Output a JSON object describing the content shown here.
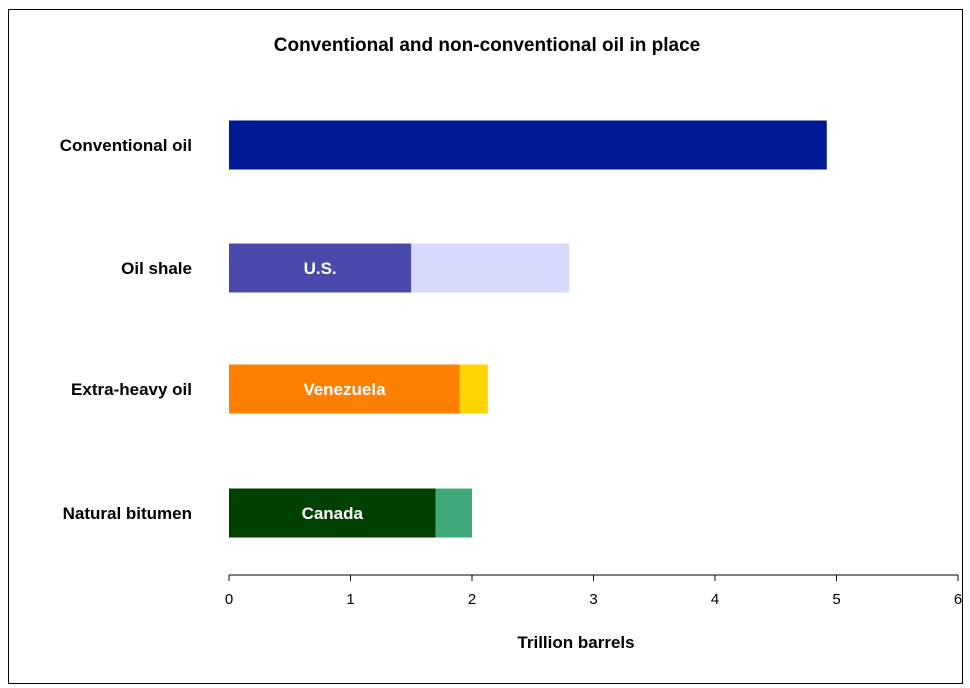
{
  "chart_data": {
    "type": "bar",
    "orientation": "horizontal",
    "stacked": true,
    "title": "Conventional and non-conventional oil in place",
    "xlabel": "Trillion barrels",
    "ylabel": "",
    "xlim": [
      0,
      6
    ],
    "xticks": [
      "0",
      "1",
      "2",
      "3",
      "4",
      "5",
      "6"
    ],
    "grid": false,
    "legend": "none",
    "categories": [
      "Conventional oil",
      "Oil shale",
      "Extra-heavy oil",
      "Natural bitumen"
    ],
    "segments": [
      [
        {
          "value": 4.92,
          "label": "",
          "color": "#001994"
        }
      ],
      [
        {
          "value": 1.5,
          "label": "U.S.",
          "color": "#4a4aad"
        },
        {
          "value": 1.3,
          "label": "",
          "color": "#d6d9fc"
        }
      ],
      [
        {
          "value": 1.9,
          "label": "Venezuela",
          "color": "#ff8000"
        },
        {
          "value": 0.23,
          "label": "",
          "color": "#ffd500"
        }
      ],
      [
        {
          "value": 1.7,
          "label": "Canada",
          "color": "#004000"
        },
        {
          "value": 0.3,
          "label": "",
          "color": "#3ea878"
        }
      ]
    ]
  }
}
